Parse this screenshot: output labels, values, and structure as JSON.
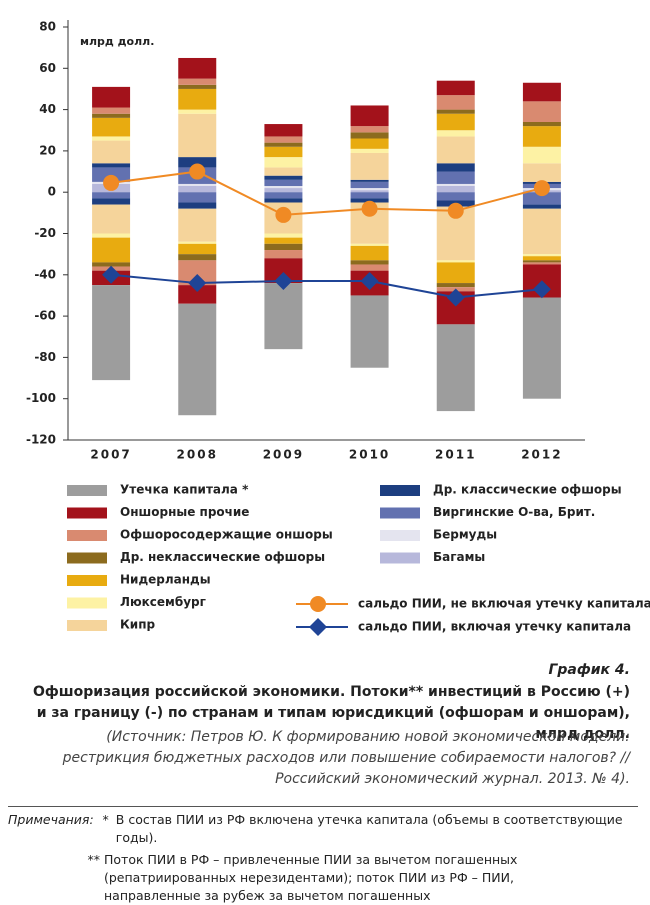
{
  "chart_data": {
    "type": "stacked-bar",
    "y_unit": "млрд долл.",
    "categories": [
      "2007",
      "2008",
      "2009",
      "2010",
      "2011",
      "2012"
    ],
    "ylim": [
      -120,
      80
    ],
    "yticks": [
      -120,
      -100,
      -80,
      -60,
      -40,
      -20,
      0,
      20,
      40,
      60,
      80
    ],
    "series": [
      {
        "name": "Утечка капитала *",
        "color": "#9d9d9d",
        "inflow": [
          null,
          null,
          null,
          null,
          null,
          null
        ],
        "outflow": [
          -46,
          -54,
          -32,
          -35,
          -42,
          -49
        ]
      },
      {
        "name": "Оншорные прочие",
        "color": "#a3121b",
        "inflow": [
          10,
          10,
          6,
          10,
          7,
          9
        ],
        "outflow": [
          -7,
          -9,
          -12,
          -12,
          -16,
          -16
        ]
      },
      {
        "name": "Офшоросодержащие оншоры",
        "color": "#d98a70",
        "inflow": [
          3,
          3,
          3,
          3,
          7,
          10
        ],
        "outflow": [
          -2,
          -12,
          -4,
          -3,
          -2,
          -1
        ]
      },
      {
        "name": "Др. неклассические офшоры",
        "color": "#8c6b1e",
        "inflow": [
          2,
          2,
          2,
          3,
          2,
          2
        ],
        "outflow": [
          -2,
          -3,
          -3,
          -2,
          -2,
          -1
        ]
      },
      {
        "name": "Нидерланды",
        "color": "#e8ab10",
        "inflow": [
          9,
          10,
          5,
          5,
          8,
          10
        ],
        "outflow": [
          -12,
          -5,
          -3,
          -7,
          -10,
          -2
        ]
      },
      {
        "name": "Люксембург",
        "color": "#fdf2a4",
        "inflow": [
          2,
          2,
          5,
          2,
          3,
          8
        ],
        "outflow": [
          -2,
          -1,
          -2,
          -1,
          -1,
          -1
        ]
      },
      {
        "name": "Кипр",
        "color": "#f5d49b",
        "inflow": [
          11,
          21,
          4,
          13,
          13,
          9
        ],
        "outflow": [
          -14,
          -16,
          -15,
          -20,
          -26,
          -22
        ]
      },
      {
        "name": "Др. классические офшоры",
        "color": "#1d3e80",
        "inflow": [
          2,
          5,
          2,
          1,
          4,
          1
        ],
        "outflow": [
          -3,
          -3,
          -2,
          -2,
          -3,
          -2
        ]
      },
      {
        "name": "Виргинские О-ва, Брит.",
        "color": "#6271b0",
        "inflow": [
          7,
          8,
          3,
          3,
          6,
          2
        ],
        "outflow": [
          -3,
          -5,
          -3,
          -3,
          -4,
          -6
        ]
      },
      {
        "name": "Бермуды",
        "color": "#e4e4ef",
        "inflow": [
          1,
          1,
          1,
          1,
          1,
          1
        ],
        "outflow": [
          null,
          null,
          null,
          null,
          null,
          null
        ]
      },
      {
        "name": "Багамы",
        "color": "#b7b8db",
        "inflow": [
          4,
          3,
          2,
          1,
          3,
          1
        ],
        "outflow": [
          null,
          null,
          null,
          null,
          null,
          null
        ]
      }
    ],
    "lines": [
      {
        "name": "сальдо ПИИ, не включая утечку капитала;",
        "color": "#f08a24",
        "marker": "circle",
        "values": [
          4.5,
          10,
          -11,
          -8,
          -9,
          2
        ]
      },
      {
        "name": "сальдо ПИИ, включая утечку капитала",
        "color": "#1f4496",
        "marker": "diamond",
        "values": [
          -40,
          -44,
          -43,
          -43,
          -51,
          -47
        ]
      }
    ]
  },
  "caption": {
    "label": "График 4.",
    "title_1": "Офшоризация российской экономики. Потоки** инвестиций в Россию (+)",
    "title_2": "и за границу (-) по странам и типам юрисдикций (офшорам и оншорам), млрд долл.",
    "source": "(Источник: Петров Ю. К формированию новой экономической модели: рестрикция бюджетных расходов или повышение собираемости налогов? // Российский экономический журнал. 2013. № 4).",
    "notes_label": "Примечания:",
    "note_1_mark": "*",
    "note_1": "В состав ПИИ из РФ включена утечка капитала (объемы в соответствующие годы).",
    "note_2_mark": "**",
    "note_2": "Поток ПИИ в РФ – привлеченные ПИИ за вычетом погашенных (репатриированных нерезидентами); поток ПИИ из РФ – ПИИ, направленные за рубеж за вычетом погашенных"
  }
}
